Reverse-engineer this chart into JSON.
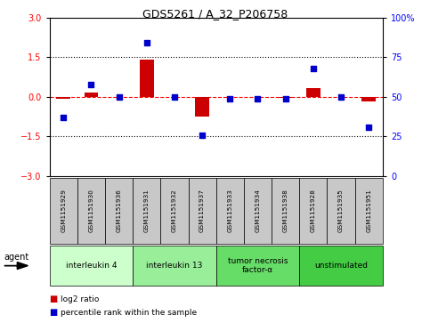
{
  "title": "GDS5261 / A_32_P206758",
  "samples": [
    "GSM1151929",
    "GSM1151930",
    "GSM1151936",
    "GSM1151931",
    "GSM1151932",
    "GSM1151937",
    "GSM1151933",
    "GSM1151934",
    "GSM1151938",
    "GSM1151928",
    "GSM1151935",
    "GSM1151951"
  ],
  "log2_ratio": [
    -0.08,
    0.18,
    0.0,
    1.42,
    0.0,
    -0.75,
    0.0,
    0.0,
    -0.05,
    0.35,
    0.0,
    -0.18
  ],
  "percentile_rank": [
    37,
    58,
    50,
    84,
    50,
    26,
    49,
    49,
    49,
    68,
    50,
    31
  ],
  "agents": [
    {
      "label": "interleukin 4",
      "samples": [
        0,
        1,
        2
      ],
      "color": "#ccffcc"
    },
    {
      "label": "interleukin 13",
      "samples": [
        3,
        4,
        5
      ],
      "color": "#99ee99"
    },
    {
      "label": "tumor necrosis\nfactor-α",
      "samples": [
        6,
        7,
        8
      ],
      "color": "#66dd66"
    },
    {
      "label": "unstimulated",
      "samples": [
        9,
        10,
        11
      ],
      "color": "#44cc44"
    }
  ],
  "ylim_left": [
    -3,
    3
  ],
  "ylim_right": [
    0,
    100
  ],
  "yticks_left": [
    -3,
    -1.5,
    0,
    1.5,
    3
  ],
  "yticks_right": [
    0,
    25,
    50,
    75,
    100
  ],
  "bar_color": "#cc0000",
  "dot_color": "#0000cc",
  "background_color": "#ffffff",
  "sample_box_color": "#c8c8c8",
  "legend_items": [
    {
      "label": "log2 ratio",
      "color": "#cc0000"
    },
    {
      "label": "percentile rank within the sample",
      "color": "#0000cc"
    }
  ]
}
